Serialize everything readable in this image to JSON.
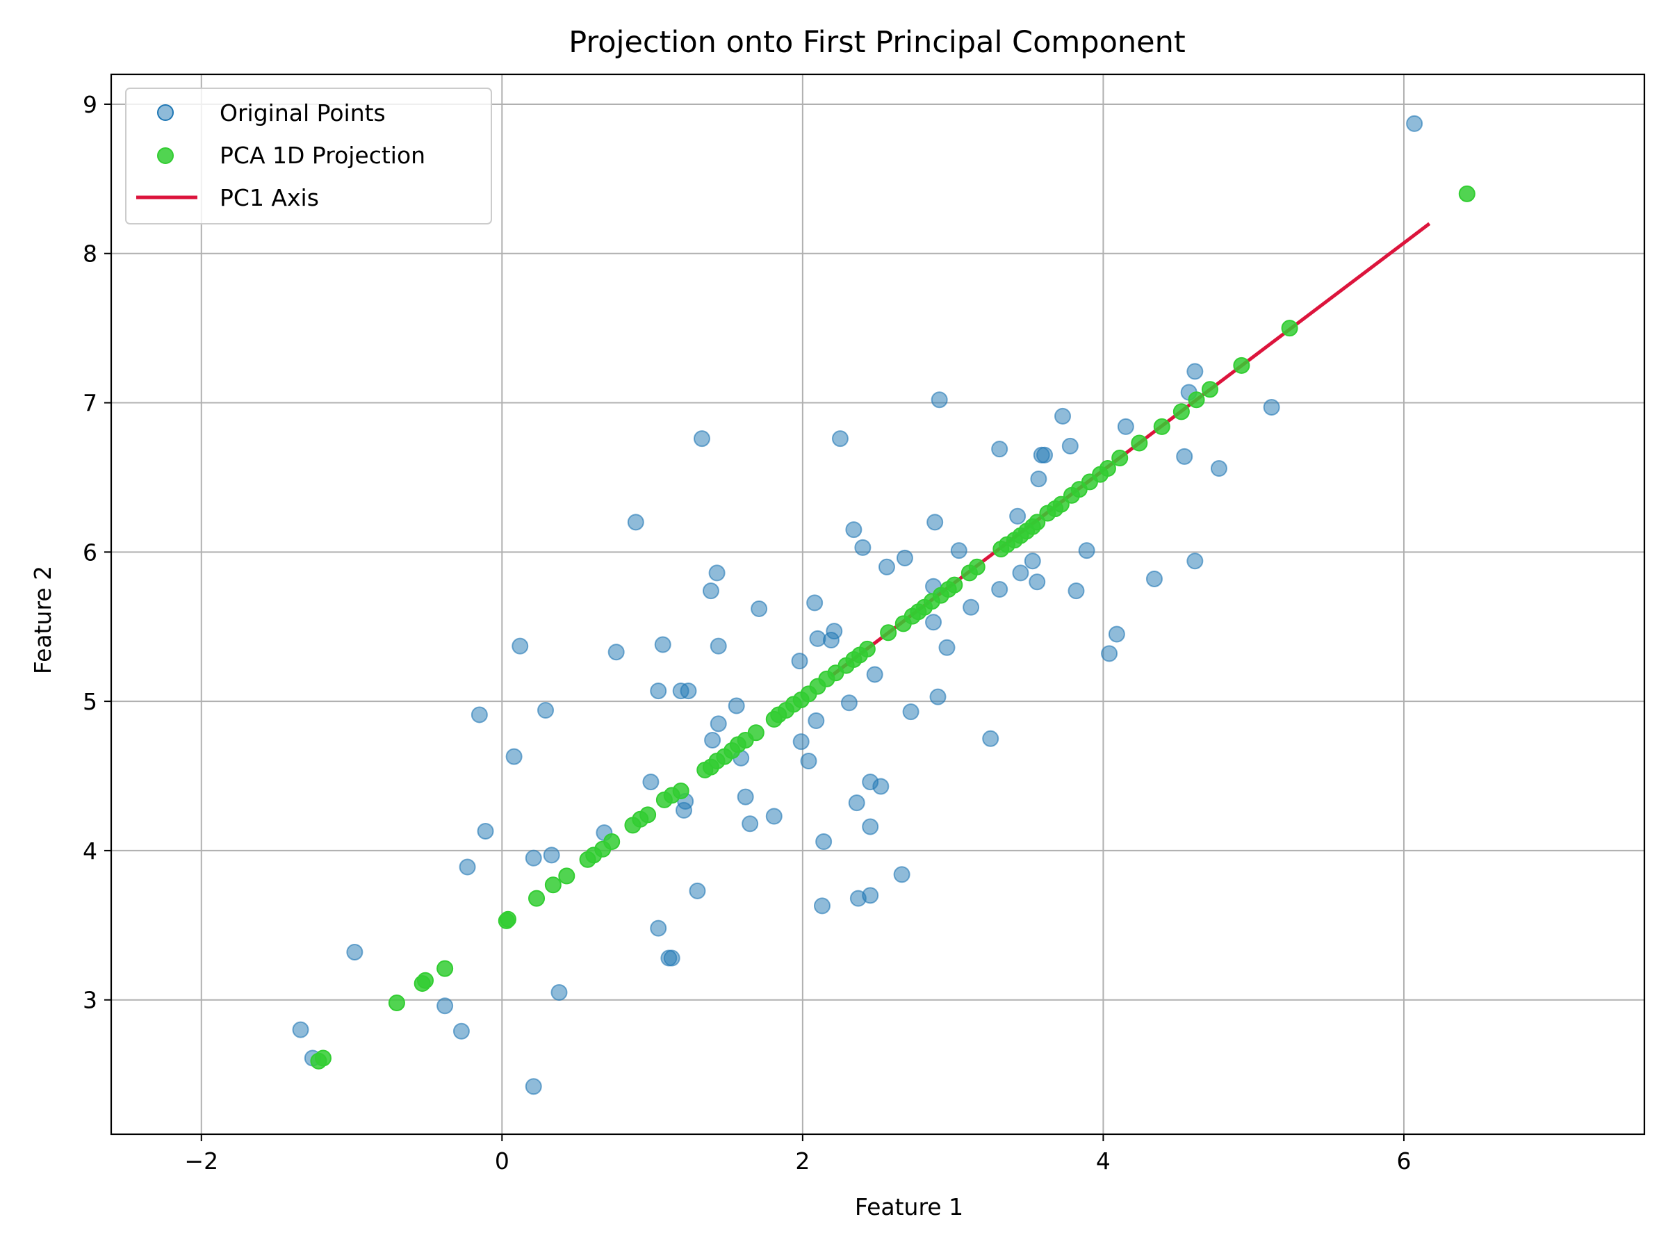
{
  "chart_data": {
    "type": "scatter",
    "title": "Projection onto First Principal Component",
    "xlabel": "Feature 1",
    "ylabel": "Feature 2",
    "xlim": [
      -2.6,
      7.6
    ],
    "ylim": [
      2.1,
      9.2
    ],
    "xticks": [
      -2,
      0,
      2,
      4,
      6
    ],
    "yticks": [
      3,
      4,
      5,
      6,
      7,
      8,
      9
    ],
    "xtick_labels": [
      "−2",
      "0",
      "2",
      "4",
      "6"
    ],
    "ytick_labels": [
      "3",
      "4",
      "5",
      "6",
      "7",
      "8",
      "9"
    ],
    "grid": true,
    "legend_position": "top-left",
    "colors": {
      "original": "#1f77b4",
      "projection": "#32cd32",
      "axis": "#dc143c"
    },
    "series": [
      {
        "name": "Original Points",
        "kind": "scatter",
        "points": [
          [
            6.07,
            8.87
          ],
          [
            5.12,
            6.97
          ],
          [
            4.61,
            7.21
          ],
          [
            4.57,
            7.07
          ],
          [
            4.77,
            6.56
          ],
          [
            4.54,
            6.64
          ],
          [
            4.61,
            5.94
          ],
          [
            4.34,
            5.82
          ],
          [
            4.15,
            6.84
          ],
          [
            4.09,
            5.45
          ],
          [
            4.04,
            5.32
          ],
          [
            3.73,
            6.91
          ],
          [
            3.78,
            6.71
          ],
          [
            3.59,
            6.65
          ],
          [
            3.61,
            6.65
          ],
          [
            3.57,
            6.49
          ],
          [
            3.31,
            6.69
          ],
          [
            3.89,
            6.01
          ],
          [
            3.82,
            5.74
          ],
          [
            3.43,
            6.24
          ],
          [
            3.53,
            5.94
          ],
          [
            3.45,
            5.86
          ],
          [
            3.56,
            5.8
          ],
          [
            3.31,
            5.75
          ],
          [
            2.91,
            7.02
          ],
          [
            2.88,
            6.2
          ],
          [
            3.04,
            6.01
          ],
          [
            2.68,
            5.96
          ],
          [
            2.56,
            5.9
          ],
          [
            2.87,
            5.77
          ],
          [
            2.87,
            5.53
          ],
          [
            2.96,
            5.36
          ],
          [
            3.12,
            5.63
          ],
          [
            2.9,
            5.03
          ],
          [
            2.72,
            4.93
          ],
          [
            3.25,
            4.75
          ],
          [
            2.25,
            6.76
          ],
          [
            2.34,
            6.15
          ],
          [
            2.4,
            6.03
          ],
          [
            2.08,
            5.66
          ],
          [
            2.21,
            5.47
          ],
          [
            2.1,
            5.42
          ],
          [
            2.19,
            5.41
          ],
          [
            1.98,
            5.27
          ],
          [
            2.48,
            5.18
          ],
          [
            2.31,
            4.99
          ],
          [
            2.09,
            4.87
          ],
          [
            1.99,
            4.73
          ],
          [
            2.04,
            4.6
          ],
          [
            2.45,
            4.46
          ],
          [
            2.52,
            4.43
          ],
          [
            2.36,
            4.32
          ],
          [
            2.45,
            4.16
          ],
          [
            2.14,
            4.06
          ],
          [
            2.66,
            3.84
          ],
          [
            2.37,
            3.68
          ],
          [
            2.45,
            3.7
          ],
          [
            2.13,
            3.63
          ],
          [
            1.33,
            6.76
          ],
          [
            1.43,
            5.86
          ],
          [
            1.39,
            5.74
          ],
          [
            1.71,
            5.62
          ],
          [
            1.44,
            5.37
          ],
          [
            1.07,
            5.38
          ],
          [
            1.19,
            5.07
          ],
          [
            1.24,
            5.07
          ],
          [
            1.04,
            5.07
          ],
          [
            1.56,
            4.97
          ],
          [
            1.44,
            4.85
          ],
          [
            1.4,
            4.74
          ],
          [
            1.59,
            4.62
          ],
          [
            1.62,
            4.36
          ],
          [
            1.22,
            4.33
          ],
          [
            1.21,
            4.27
          ],
          [
            1.65,
            4.18
          ],
          [
            1.81,
            4.23
          ],
          [
            1.3,
            3.73
          ],
          [
            1.04,
            3.48
          ],
          [
            1.11,
            3.28
          ],
          [
            1.13,
            3.28
          ],
          [
            0.89,
            6.2
          ],
          [
            0.76,
            5.33
          ],
          [
            0.12,
            5.37
          ],
          [
            0.29,
            4.94
          ],
          [
            -0.15,
            4.91
          ],
          [
            0.08,
            4.63
          ],
          [
            0.99,
            4.46
          ],
          [
            0.68,
            4.12
          ],
          [
            0.33,
            3.97
          ],
          [
            0.21,
            3.95
          ],
          [
            -0.11,
            4.13
          ],
          [
            -0.23,
            3.89
          ],
          [
            0.38,
            3.05
          ],
          [
            0.21,
            2.42
          ],
          [
            -0.98,
            3.32
          ],
          [
            -0.38,
            2.96
          ],
          [
            -0.27,
            2.79
          ],
          [
            -1.34,
            2.8
          ],
          [
            -1.26,
            2.61
          ]
        ]
      },
      {
        "name": "PCA 1D Projection",
        "kind": "scatter",
        "points": [
          [
            6.42,
            8.4
          ],
          [
            5.24,
            7.5
          ],
          [
            4.92,
            7.25
          ],
          [
            4.71,
            7.09
          ],
          [
            4.62,
            7.02
          ],
          [
            4.52,
            6.94
          ],
          [
            4.39,
            6.84
          ],
          [
            4.24,
            6.73
          ],
          [
            4.11,
            6.63
          ],
          [
            4.03,
            6.56
          ],
          [
            3.98,
            6.52
          ],
          [
            3.91,
            6.47
          ],
          [
            3.84,
            6.42
          ],
          [
            3.79,
            6.38
          ],
          [
            3.72,
            6.32
          ],
          [
            3.68,
            6.29
          ],
          [
            3.63,
            6.26
          ],
          [
            3.56,
            6.2
          ],
          [
            3.53,
            6.17
          ],
          [
            3.49,
            6.14
          ],
          [
            3.45,
            6.11
          ],
          [
            3.41,
            6.08
          ],
          [
            3.36,
            6.05
          ],
          [
            3.32,
            6.02
          ],
          [
            3.16,
            5.9
          ],
          [
            3.11,
            5.86
          ],
          [
            3.01,
            5.78
          ],
          [
            2.97,
            5.75
          ],
          [
            2.92,
            5.71
          ],
          [
            2.86,
            5.67
          ],
          [
            2.81,
            5.63
          ],
          [
            2.77,
            5.6
          ],
          [
            2.73,
            5.57
          ],
          [
            2.67,
            5.52
          ],
          [
            2.57,
            5.46
          ],
          [
            2.43,
            5.35
          ],
          [
            2.38,
            5.31
          ],
          [
            2.34,
            5.28
          ],
          [
            2.29,
            5.24
          ],
          [
            2.22,
            5.19
          ],
          [
            2.16,
            5.15
          ],
          [
            2.1,
            5.1
          ],
          [
            2.04,
            5.05
          ],
          [
            1.99,
            5.01
          ],
          [
            1.94,
            4.98
          ],
          [
            1.89,
            4.94
          ],
          [
            1.84,
            4.91
          ],
          [
            1.81,
            4.88
          ],
          [
            1.69,
            4.79
          ],
          [
            1.62,
            4.74
          ],
          [
            1.57,
            4.71
          ],
          [
            1.53,
            4.67
          ],
          [
            1.48,
            4.63
          ],
          [
            1.43,
            4.6
          ],
          [
            1.39,
            4.56
          ],
          [
            1.35,
            4.54
          ],
          [
            1.19,
            4.4
          ],
          [
            1.13,
            4.37
          ],
          [
            1.08,
            4.34
          ],
          [
            0.97,
            4.24
          ],
          [
            0.92,
            4.21
          ],
          [
            0.87,
            4.17
          ],
          [
            0.73,
            4.06
          ],
          [
            0.67,
            4.01
          ],
          [
            0.61,
            3.97
          ],
          [
            0.57,
            3.94
          ],
          [
            0.43,
            3.83
          ],
          [
            0.34,
            3.77
          ],
          [
            0.23,
            3.68
          ],
          [
            0.04,
            3.54
          ],
          [
            0.03,
            3.53
          ],
          [
            -0.38,
            3.21
          ],
          [
            -0.51,
            3.13
          ],
          [
            -0.53,
            3.11
          ],
          [
            -0.7,
            2.98
          ],
          [
            -1.19,
            2.61
          ],
          [
            -1.22,
            2.59
          ]
        ]
      },
      {
        "name": "PC1 Axis",
        "kind": "line",
        "points": [
          [
            2.19,
            5.17
          ],
          [
            6.17,
            8.2
          ]
        ]
      }
    ]
  }
}
